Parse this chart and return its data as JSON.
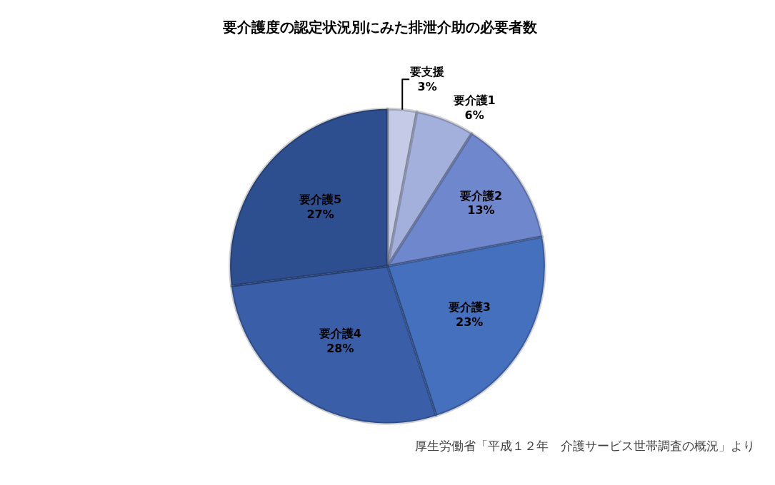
{
  "chart_data": {
    "type": "pie",
    "title": "要介護度の認定状況別にみた排泄介助の必要者数",
    "categories": [
      "要支援",
      "要介護1",
      "要介護2",
      "要介護3",
      "要介護4",
      "要介護5"
    ],
    "values": [
      3,
      6,
      13,
      23,
      28,
      27
    ],
    "value_labels": [
      "3%",
      "6%",
      "13%",
      "23%",
      "28%",
      "27%"
    ],
    "colors": [
      "#c5cbe6",
      "#a3b0dc",
      "#6f87cc",
      "#4470be",
      "#3a5fa8",
      "#2e4f8f"
    ],
    "legend": false,
    "annotations": [
      "厚生労働省「平成１２年　介護サービス世帯調査の概況」より"
    ]
  }
}
